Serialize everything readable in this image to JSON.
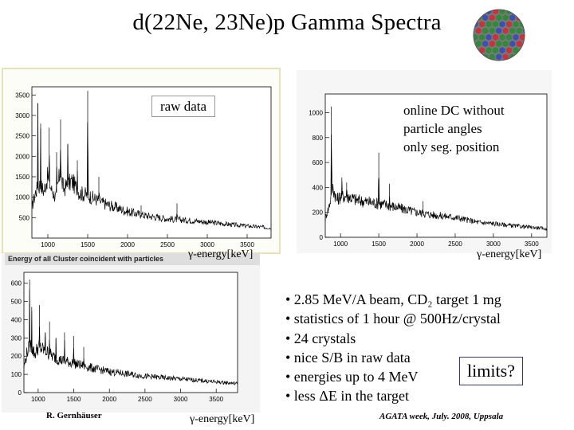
{
  "slide": {
    "title": "d(22Ne, 23Ne)p Gamma Spectra",
    "author": "R. Gernhäuser",
    "conference": "AGATA week, July. 2008, Uppsala",
    "logo_icon": "agata-sphere-icon"
  },
  "annotations": {
    "raw_data": "raw data",
    "online_dc": "online DC without particle angles only seg. position",
    "online_dc_lines": [
      "online DC without",
      "particle angles",
      "only seg. position"
    ],
    "limits": "limits?",
    "gamma_energy_label": "γ-energy[keV]",
    "histogram_caption": "Energy of all Cluster coincident with particles"
  },
  "bullets": [
    "• 2.85 MeV/A beam, CD₂ target 1 mg",
    "• statistics of 1 hour @ 500Hz/crystal",
    "• 24 crystals",
    "• nice S/B in raw data",
    "• energies up to 4 MeV",
    "• less ΔE in the target"
  ],
  "colors": {
    "panel1_border": "#e9e2b6",
    "limits_border": "#34386e",
    "spectrum_line": "#000000"
  },
  "chart_data": [
    {
      "type": "line",
      "title": "",
      "xlabel": "γ-energy[keV]",
      "xlim": [
        800,
        3800
      ],
      "ylim": [
        0,
        3700
      ],
      "x_ticks": [
        1000,
        1500,
        2000,
        2500,
        3000,
        3500
      ],
      "y_ticks": [
        500,
        1000,
        1500,
        2000,
        2500,
        3000,
        3500
      ],
      "series": [
        {
          "x": [
            800,
            850,
            900,
            950,
            1000,
            1050,
            1100,
            1150,
            1200,
            1300,
            1400,
            1500,
            1700,
            2000,
            2200,
            2500,
            2800,
            3000,
            3300,
            3600,
            3800
          ],
          "values": [
            750,
            1150,
            1300,
            1150,
            1500,
            1150,
            1000,
            1550,
            1200,
            1400,
            1100,
            1050,
            850,
            650,
            560,
            470,
            430,
            390,
            330,
            280,
            250
          ]
        }
      ],
      "peaks": [
        {
          "x": 875,
          "y": 3300
        },
        {
          "x": 910,
          "y": 2800
        },
        {
          "x": 1017,
          "y": 2700
        },
        {
          "x": 1110,
          "y": 2100
        },
        {
          "x": 1160,
          "y": 2900
        },
        {
          "x": 1250,
          "y": 2300
        },
        {
          "x": 1370,
          "y": 1900
        },
        {
          "x": 1500,
          "y": 3600
        },
        {
          "x": 1640,
          "y": 1500
        },
        {
          "x": 2170,
          "y": 800
        },
        {
          "x": 2620,
          "y": 850
        }
      ]
    },
    {
      "type": "line",
      "title": "",
      "xlabel": "γ-energy[keV]",
      "xlim": [
        800,
        3700
      ],
      "ylim": [
        0,
        1150
      ],
      "x_ticks": [
        1000,
        1500,
        2000,
        2500,
        3000,
        3500
      ],
      "y_ticks": [
        0,
        200,
        400,
        600,
        800,
        1000
      ],
      "series": [
        {
          "x": [
            800,
            850,
            900,
            950,
            1000,
            1100,
            1200,
            1400,
            1600,
            1800,
            2000,
            2200,
            2500,
            2800,
            3000,
            3300,
            3600,
            3700
          ],
          "values": [
            150,
            250,
            400,
            300,
            330,
            330,
            300,
            280,
            260,
            230,
            200,
            180,
            160,
            120,
            110,
            90,
            75,
            65
          ]
        }
      ],
      "peaks": [
        {
          "x": 880,
          "y": 1050
        },
        {
          "x": 1017,
          "y": 480
        },
        {
          "x": 1080,
          "y": 440
        },
        {
          "x": 1500,
          "y": 680
        },
        {
          "x": 1640,
          "y": 430
        },
        {
          "x": 2080,
          "y": 290
        }
      ]
    },
    {
      "type": "line",
      "title": "",
      "xlabel": "γ-energy[keV]",
      "xlim": [
        800,
        3800
      ],
      "ylim": [
        0,
        660
      ],
      "x_ticks": [
        1000,
        1500,
        2000,
        2500,
        3000,
        3500
      ],
      "y_ticks": [
        0,
        100,
        200,
        300,
        400,
        500,
        600
      ],
      "series": [
        {
          "x": [
            800,
            850,
            900,
            950,
            1000,
            1100,
            1200,
            1300,
            1400,
            1500,
            1600,
            1800,
            2000,
            2200,
            2500,
            2800,
            3000,
            3300,
            3600,
            3800
          ],
          "values": [
            140,
            230,
            260,
            210,
            250,
            230,
            200,
            180,
            170,
            160,
            150,
            130,
            115,
            105,
            90,
            80,
            75,
            65,
            55,
            50
          ]
        }
      ],
      "peaks": [
        {
          "x": 880,
          "y": 620
        },
        {
          "x": 910,
          "y": 470
        },
        {
          "x": 1017,
          "y": 480
        },
        {
          "x": 1100,
          "y": 330
        },
        {
          "x": 1160,
          "y": 390
        },
        {
          "x": 1250,
          "y": 300
        },
        {
          "x": 1370,
          "y": 330
        },
        {
          "x": 1500,
          "y": 310
        },
        {
          "x": 1640,
          "y": 250
        }
      ]
    }
  ]
}
